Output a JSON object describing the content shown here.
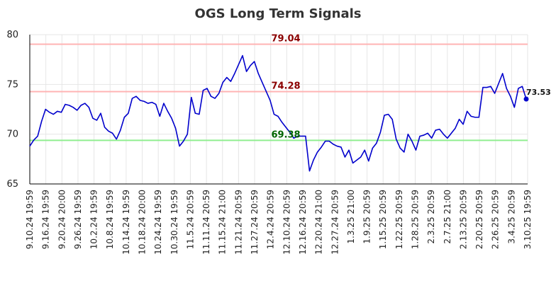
{
  "chart_data": {
    "type": "line",
    "title": "OGS Long Term Signals",
    "xlabel": "",
    "ylabel": "",
    "ylim": [
      65,
      80
    ],
    "yticks": [
      65,
      70,
      75,
      80
    ],
    "grid": true,
    "x_tick_labels": [
      "9.10.24 19:59",
      "9.16.24 19:59",
      "9.20.24 20:00",
      "9.26.24 19:59",
      "10.2.24 19:59",
      "10.8.24 19:59",
      "10.14.24 19:59",
      "10.18.24 20:00",
      "10.24.24 19:59",
      "10.30.24 19:59",
      "11.5.24 20:59",
      "11.11.24 20:59",
      "11.15.24 21:00",
      "11.21.24 20:59",
      "11.27.24 20:59",
      "12.4.24 20:59",
      "12.10.24 20:59",
      "12.16.24 20:59",
      "12.20.24 21:00",
      "12.27.24 20:59",
      "1.3.25 21:00",
      "1.9.25 20:59",
      "1.15.25 20:59",
      "1.22.25 20:59",
      "1.28.25 20:59",
      "2.3.25 20:59",
      "2.7.25 21:00",
      "2.13.25 20:59",
      "2.20.25 20:59",
      "2.26.25 20:59",
      "3.4.25 20:59",
      "3.10.25 19:59"
    ],
    "series": [
      {
        "color": "#0000cc",
        "values": [
          68.8,
          69.4,
          69.8,
          71.3,
          72.5,
          72.2,
          72.0,
          72.3,
          72.2,
          73.0,
          72.9,
          72.7,
          72.4,
          72.9,
          73.1,
          72.7,
          71.6,
          71.4,
          72.1,
          70.7,
          70.3,
          70.1,
          69.5,
          70.4,
          71.7,
          72.1,
          73.6,
          73.8,
          73.4,
          73.3,
          73.1,
          73.2,
          73.0,
          71.8,
          73.1,
          72.3,
          71.6,
          70.6,
          68.8,
          69.3,
          70.0,
          73.7,
          72.1,
          72.0,
          74.4,
          74.6,
          73.8,
          73.6,
          74.1,
          75.2,
          75.7,
          75.3,
          76.1,
          77.0,
          77.9,
          76.3,
          76.9,
          77.3,
          76.1,
          75.2,
          74.3,
          73.4,
          72.0,
          71.8,
          71.2,
          70.7,
          70.2,
          69.6,
          69.8,
          69.8,
          69.8,
          66.3,
          67.4,
          68.2,
          68.7,
          69.3,
          69.3,
          69.0,
          68.8,
          68.7,
          67.7,
          68.4,
          67.1,
          67.4,
          67.7,
          68.4,
          67.3,
          68.6,
          69.1,
          70.2,
          71.9,
          72.0,
          71.5,
          69.5,
          68.6,
          68.2,
          70.0,
          69.3,
          68.4,
          69.8,
          69.9,
          70.1,
          69.6,
          70.4,
          70.5,
          70.0,
          69.6,
          70.1,
          70.6,
          71.5,
          71.0,
          72.3,
          71.8,
          71.7,
          71.7,
          74.7,
          74.7,
          74.8,
          74.1,
          75.1,
          76.1,
          74.6,
          73.8,
          72.7,
          74.6,
          74.8,
          73.53
        ]
      }
    ],
    "reference_lines": [
      {
        "value": 79.04,
        "label": "79.04",
        "line_color": "#ffb3b3",
        "label_color": "#8b0000"
      },
      {
        "value": 74.28,
        "label": "74.28",
        "line_color": "#ffb3b3",
        "label_color": "#8b0000"
      },
      {
        "value": 69.38,
        "label": "69.38",
        "line_color": "#90ee90",
        "label_color": "#006400"
      }
    ],
    "last_value_label": "73.53",
    "colors": {
      "grid": "#e6e6e6",
      "axis": "#000000",
      "line": "#0000cc",
      "marker": "#0000cc"
    }
  }
}
